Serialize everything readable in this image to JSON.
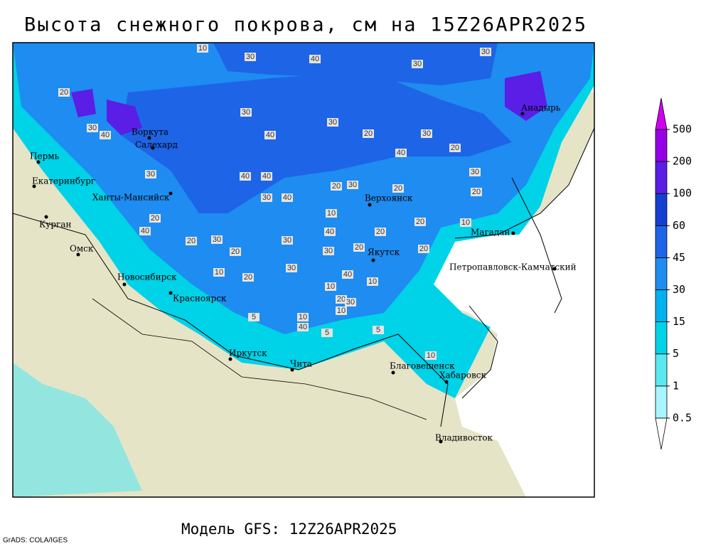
{
  "title": "Высота снежного покрова, см на 15Z26APR2025",
  "footer": "Модель GFS: 12Z26APR2025",
  "credit": "GrADS: COLA/IGES",
  "cities": [
    "Воркута",
    "Салехард",
    "Пермь",
    "Екатеринбург",
    "Ханты-Мансийск",
    "Курган",
    "Омск",
    "Новосибирск",
    "Красноярск",
    "Иркутск",
    "Чита",
    "Благовещенск",
    "Хабаровск",
    "Владивосток",
    "Якутск",
    "Верхоянск",
    "Магадан",
    "Петропавловск-Камчатский",
    "Анадырь"
  ],
  "contour_labels": [
    10,
    30,
    40,
    30,
    30,
    20,
    30,
    30,
    30,
    40,
    40,
    20,
    30,
    20,
    40,
    30,
    40,
    40,
    20,
    30,
    20,
    30,
    20,
    30,
    40,
    20,
    10,
    20,
    10,
    40,
    20,
    40,
    30,
    20,
    30,
    20,
    30,
    20,
    20,
    30,
    40,
    10,
    10,
    20,
    10,
    20,
    30,
    10,
    5,
    10,
    40,
    5,
    5,
    10
  ],
  "colorbar": {
    "labels": [
      0.5,
      1,
      5,
      15,
      30,
      45,
      60,
      100,
      200,
      500
    ],
    "colors": [
      "#ffffff",
      "#a8f4ff",
      "#5ae8f0",
      "#00d2e8",
      "#00b0f0",
      "#1e8cf0",
      "#1e64e6",
      "#1440d2",
      "#5a1ee6",
      "#9600e6",
      "#d200f0"
    ]
  }
}
